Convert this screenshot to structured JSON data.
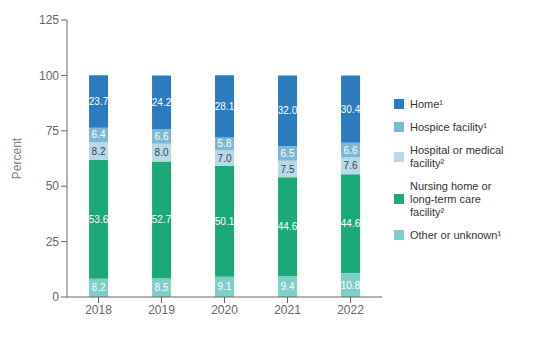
{
  "chart_data": {
    "type": "bar",
    "stacked": true,
    "data_labels": true,
    "legend": "right",
    "grid": false,
    "y_label": "Percent",
    "categories": [
      "2018",
      "2019",
      "2020",
      "2021",
      "2022"
    ],
    "ylim": [
      0,
      125
    ],
    "yticks": [
      0,
      25,
      50,
      75,
      100,
      125
    ],
    "series": [
      {
        "name": "Other or unknown¹",
        "color": "#7ececa",
        "values": [
          8.2,
          8.5,
          9.1,
          9.4,
          10.8
        ],
        "value_labels": [
          "8.2",
          "8.5",
          "9.1",
          "9.4",
          "10.8"
        ]
      },
      {
        "name": "Nursing home or\nlong-term care\nfacility²",
        "color": "#1aaa78",
        "values": [
          53.6,
          52.7,
          50.1,
          44.6,
          44.6
        ],
        "value_labels": [
          "53.6",
          "52.7",
          "50.1",
          "44.6",
          "44.6"
        ]
      },
      {
        "name": "Hospital or medical\nfacility²",
        "color": "#b8d9e8",
        "values": [
          8.2,
          8.0,
          7.0,
          7.5,
          7.6
        ],
        "value_labels": [
          "8.2",
          "8.0",
          "7.0",
          "7.5",
          "7.6"
        ]
      },
      {
        "name": "Hospice facility¹",
        "color": "#7ab8d4",
        "values": [
          6.4,
          6.6,
          5.8,
          6.5,
          6.6
        ],
        "value_labels": [
          "6.4",
          "6.6",
          "5.8",
          "6.5",
          "6.6"
        ]
      },
      {
        "name": "Home¹",
        "color": "#2b7bbf",
        "values": [
          23.7,
          24.2,
          28.1,
          32.0,
          30.4
        ],
        "value_labels": [
          "23.7",
          "24.2",
          "28.1",
          "32.0",
          "30.4"
        ]
      }
    ]
  }
}
